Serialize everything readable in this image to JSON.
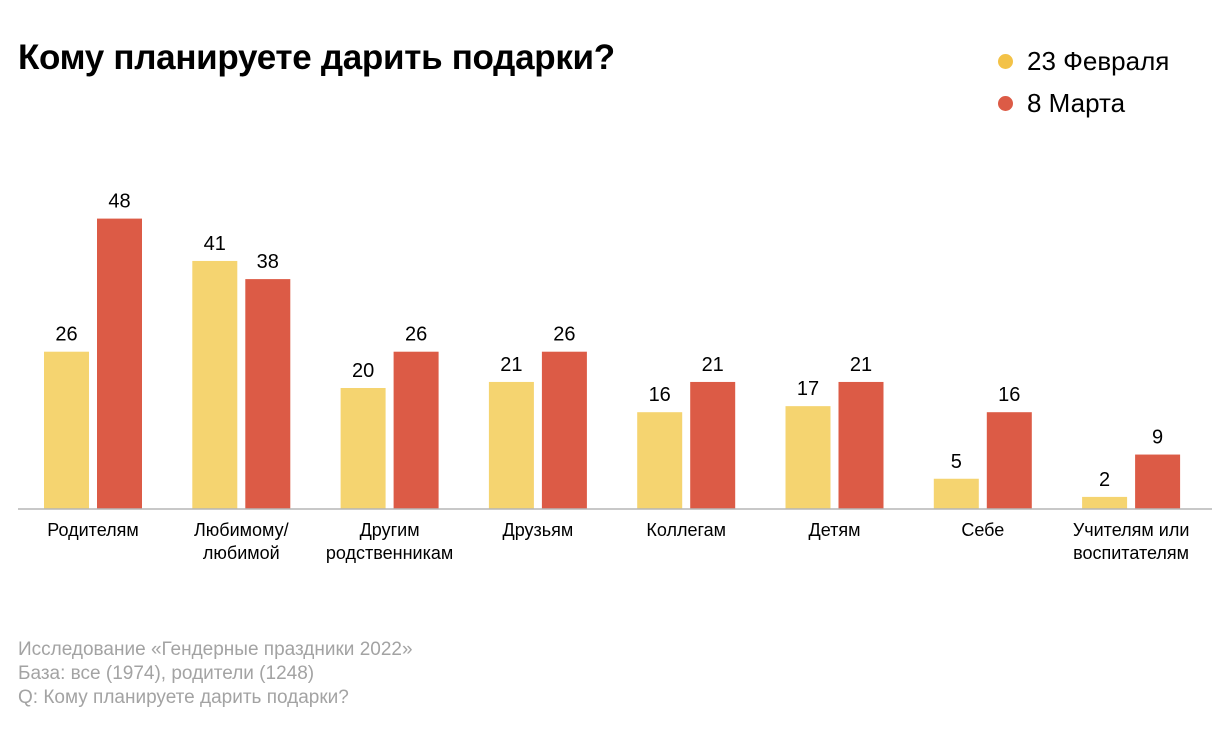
{
  "chart_data": {
    "type": "bar",
    "title": "Кому планируете дарить подарки?",
    "categories": [
      [
        "Родителям"
      ],
      [
        "Любимому/",
        "любимой"
      ],
      [
        "Другим",
        "родственникам"
      ],
      [
        "Друзьям"
      ],
      [
        "Коллегам"
      ],
      [
        "Детям"
      ],
      [
        "Себе"
      ],
      [
        "Учителям или",
        "воспитателям"
      ]
    ],
    "series": [
      {
        "name": "23 Февраля",
        "color": "#f5d470",
        "values": [
          26,
          41,
          20,
          21,
          16,
          17,
          5,
          2
        ]
      },
      {
        "name": "8 Марта",
        "color": "#dc5b46",
        "values": [
          48,
          38,
          26,
          26,
          21,
          21,
          16,
          9
        ]
      }
    ],
    "data_labels": true,
    "legend_position": "top-right",
    "grid": false
  },
  "footer": {
    "lines": [
      "Исследование «Гендерные праздники 2022»",
      "База: все (1974), родители (1248)",
      "Q: Кому планируете дарить подарки?"
    ]
  }
}
